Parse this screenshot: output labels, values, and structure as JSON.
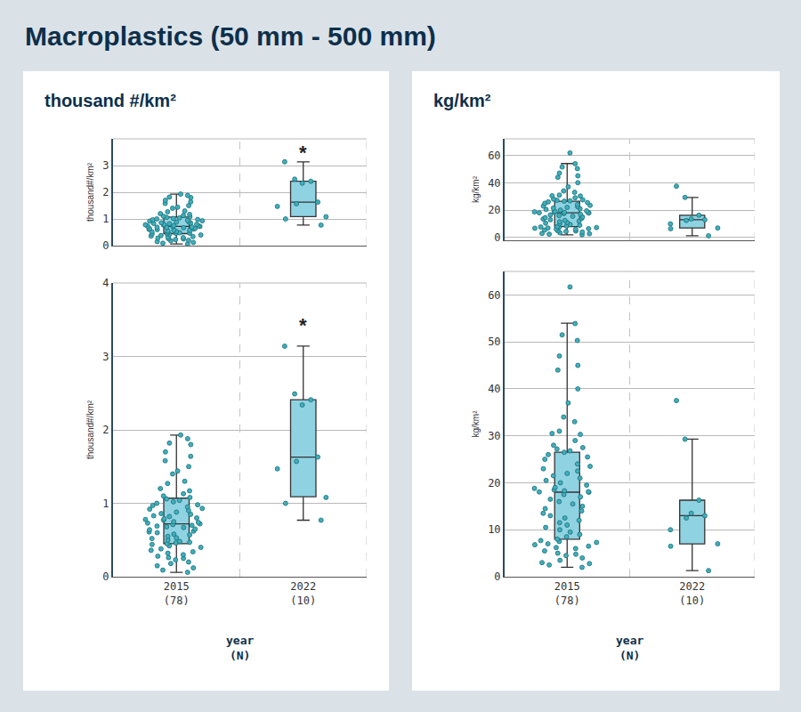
{
  "title": "Macroplastics (50 mm - 500 mm)",
  "chart_data": [
    {
      "type": "box",
      "title": "thousand #/km²",
      "ylabel": "thousand#/km²",
      "xlabel": "year\n(N)",
      "categories": [
        "2015\n(78)",
        "2022\n(10)"
      ],
      "color": "#8fd3e3",
      "grid": true,
      "q1": [
        0.45,
        1.09
      ],
      "median": [
        0.72,
        1.63
      ],
      "q3": [
        1.07,
        2.41
      ],
      "lowerfence": [
        0.06,
        0.77
      ],
      "upperfence": [
        1.93,
        3.14
      ],
      "values": [
        [
          1.93,
          1.88,
          1.82,
          1.8,
          1.7,
          1.64,
          1.58,
          1.5,
          1.44,
          1.4,
          1.3,
          1.27,
          1.2,
          1.17,
          1.13,
          1.1,
          1.08,
          1.06,
          1.04,
          1.02,
          1.0,
          0.98,
          0.97,
          0.95,
          0.93,
          0.92,
          0.9,
          0.88,
          0.86,
          0.85,
          0.83,
          0.82,
          0.8,
          0.79,
          0.78,
          0.77,
          0.75,
          0.74,
          0.73,
          0.72,
          0.71,
          0.7,
          0.69,
          0.68,
          0.67,
          0.65,
          0.64,
          0.62,
          0.61,
          0.6,
          0.58,
          0.57,
          0.55,
          0.53,
          0.52,
          0.5,
          0.48,
          0.47,
          0.46,
          0.45,
          0.44,
          0.42,
          0.4,
          0.38,
          0.36,
          0.34,
          0.32,
          0.3,
          0.28,
          0.26,
          0.25,
          0.23,
          0.2,
          0.18,
          0.15,
          0.12,
          0.09,
          0.06
        ],
        [
          3.14,
          2.49,
          2.41,
          2.34,
          1.63,
          1.57,
          1.47,
          1.08,
          1.0,
          0.77
        ]
      ],
      "views": [
        {
          "ylim": [
            0,
            4
          ],
          "yticks": [
            0,
            1,
            2,
            3
          ],
          "annotations": [
            {
              "x": 1,
              "y": 3.47,
              "text": "*"
            }
          ]
        },
        {
          "ylim": [
            0,
            4
          ],
          "yticks": [
            0,
            1,
            2,
            3,
            4
          ],
          "annotations": [
            {
              "x": 1,
              "y": 3.42,
              "text": "*"
            }
          ]
        }
      ]
    },
    {
      "type": "box",
      "title": "kg/km²",
      "ylabel": "kg/km²",
      "xlabel": "year\n(N)",
      "categories": [
        "2015\n(78)",
        "2022\n(10)"
      ],
      "color": "#8fd3e3",
      "grid": true,
      "q1": [
        8,
        7
      ],
      "median": [
        18,
        13
      ],
      "q3": [
        26.5,
        16.3
      ],
      "lowerfence": [
        2,
        1.3
      ],
      "upperfence": [
        54,
        29.3
      ],
      "values": [
        [
          61.7,
          53.9,
          51.5,
          50.3,
          47,
          45,
          44,
          40,
          37,
          34,
          33,
          31,
          30.5,
          30.3,
          29,
          28,
          27.5,
          27.2,
          26.8,
          26.5,
          26,
          25.5,
          25,
          24,
          23.5,
          23,
          22.5,
          22,
          21.5,
          21,
          20.5,
          20,
          19.5,
          19,
          18.8,
          18.5,
          18.3,
          18.1,
          18.05,
          18,
          17.5,
          17,
          16.5,
          16,
          15.5,
          15,
          14.5,
          14,
          13.5,
          13,
          12.5,
          12,
          11.5,
          11,
          10.5,
          10,
          9.5,
          9,
          8.5,
          8,
          7.7,
          7.5,
          7.3,
          7,
          6.8,
          6.5,
          6.2,
          6,
          5.5,
          5,
          4.8,
          4.5,
          4,
          3.5,
          3,
          2.8,
          2.5,
          2
        ],
        [
          37.5,
          29.3,
          16.3,
          13.5,
          13,
          12.5,
          10,
          7,
          6.5,
          1.3
        ]
      ],
      "views": [
        {
          "ylim": [
            -2,
            72
          ],
          "yticks": [
            0,
            20,
            40,
            60
          ],
          "annotations": []
        },
        {
          "ylim": [
            0,
            65
          ],
          "yticks": [
            0,
            10,
            20,
            30,
            40,
            50,
            60
          ],
          "annotations": []
        }
      ]
    }
  ]
}
